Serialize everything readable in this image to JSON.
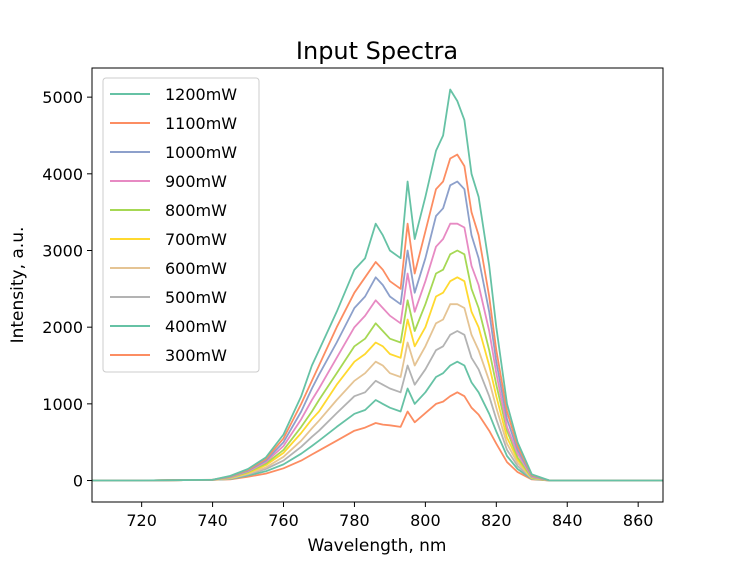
{
  "chart_data": {
    "type": "line",
    "title": "Input Spectra",
    "xlabel": "Wavelength, nm",
    "ylabel": "Intensity, a.u.",
    "xlim": [
      706,
      867
    ],
    "ylim": [
      -280,
      5380
    ],
    "xticks": [
      720,
      740,
      760,
      780,
      800,
      820,
      840,
      860
    ],
    "yticks": [
      0,
      1000,
      2000,
      3000,
      4000,
      5000
    ],
    "grid": false,
    "legend_position": "upper-left",
    "x": [
      706,
      720,
      740,
      745,
      750,
      755,
      760,
      765,
      768,
      770,
      775,
      780,
      783,
      786,
      788,
      790,
      793,
      795,
      797,
      800,
      803,
      805,
      807,
      809,
      811,
      813,
      815,
      818,
      820,
      823,
      826,
      830,
      835,
      840,
      850,
      867
    ],
    "series": [
      {
        "name": "1200mW",
        "color": "#66c2a5",
        "values": [
          0,
          0,
          10,
          60,
          150,
          300,
          600,
          1100,
          1500,
          1700,
          2200,
          2750,
          2900,
          3350,
          3200,
          3000,
          2900,
          3900,
          3150,
          3700,
          4300,
          4500,
          5100,
          4950,
          4700,
          4000,
          3700,
          2800,
          2000,
          1000,
          500,
          80,
          0,
          0,
          0,
          0
        ]
      },
      {
        "name": "1100mW",
        "color": "#fc8d62",
        "values": [
          0,
          0,
          10,
          55,
          140,
          280,
          550,
          1000,
          1300,
          1500,
          2000,
          2450,
          2650,
          2850,
          2750,
          2600,
          2500,
          3350,
          2700,
          3250,
          3800,
          3900,
          4200,
          4250,
          4100,
          3500,
          3200,
          2400,
          1700,
          900,
          450,
          70,
          0,
          0,
          0,
          0
        ]
      },
      {
        "name": "1000mW",
        "color": "#8da0cb",
        "values": [
          0,
          0,
          10,
          50,
          130,
          260,
          500,
          900,
          1200,
          1380,
          1800,
          2250,
          2400,
          2650,
          2550,
          2400,
          2300,
          3000,
          2450,
          2900,
          3450,
          3550,
          3850,
          3900,
          3800,
          3200,
          2900,
          2200,
          1550,
          800,
          400,
          60,
          0,
          0,
          0,
          0
        ]
      },
      {
        "name": "900mW",
        "color": "#e78ac3",
        "values": [
          0,
          0,
          10,
          45,
          120,
          240,
          450,
          800,
          1050,
          1200,
          1600,
          2000,
          2150,
          2350,
          2250,
          2150,
          2050,
          2700,
          2200,
          2600,
          3050,
          3150,
          3350,
          3350,
          3300,
          2800,
          2550,
          1950,
          1400,
          700,
          350,
          50,
          0,
          0,
          0,
          0
        ]
      },
      {
        "name": "800mW",
        "color": "#a6d854",
        "values": [
          0,
          0,
          10,
          40,
          110,
          220,
          400,
          700,
          900,
          1050,
          1400,
          1750,
          1850,
          2050,
          1950,
          1850,
          1800,
          2350,
          1950,
          2300,
          2700,
          2750,
          2950,
          3000,
          2950,
          2500,
          2250,
          1700,
          1250,
          650,
          300,
          40,
          0,
          0,
          0,
          0
        ]
      },
      {
        "name": "700mW",
        "color": "#ffd92f",
        "values": [
          0,
          0,
          10,
          35,
          100,
          200,
          360,
          620,
          800,
          900,
          1250,
          1550,
          1650,
          1800,
          1750,
          1650,
          1600,
          2100,
          1750,
          2000,
          2400,
          2450,
          2600,
          2650,
          2600,
          2200,
          2000,
          1500,
          1100,
          560,
          270,
          35,
          0,
          0,
          0,
          0
        ]
      },
      {
        "name": "600mW",
        "color": "#e5c494",
        "values": [
          0,
          0,
          10,
          30,
          90,
          170,
          310,
          520,
          680,
          780,
          1050,
          1300,
          1400,
          1550,
          1500,
          1400,
          1350,
          1800,
          1500,
          1750,
          2050,
          2100,
          2300,
          2300,
          2250,
          1900,
          1700,
          1300,
          950,
          480,
          230,
          30,
          0,
          0,
          0,
          0
        ]
      },
      {
        "name": "500mW",
        "color": "#b3b3b3",
        "values": [
          0,
          0,
          10,
          25,
          80,
          150,
          260,
          440,
          570,
          650,
          880,
          1100,
          1150,
          1300,
          1250,
          1200,
          1150,
          1500,
          1250,
          1450,
          1700,
          1750,
          1900,
          1950,
          1900,
          1600,
          1450,
          1100,
          800,
          400,
          190,
          25,
          0,
          0,
          0,
          0
        ]
      },
      {
        "name": "400mW",
        "color": "#66c2a5",
        "values": [
          0,
          0,
          10,
          20,
          65,
          120,
          210,
          350,
          450,
          520,
          700,
          870,
          920,
          1050,
          1000,
          950,
          900,
          1200,
          1000,
          1150,
          1350,
          1400,
          1500,
          1550,
          1500,
          1280,
          1150,
          870,
          640,
          320,
          150,
          20,
          0,
          0,
          0,
          0
        ]
      },
      {
        "name": "300mW",
        "color": "#fc8d62",
        "values": [
          0,
          0,
          10,
          15,
          50,
          90,
          160,
          260,
          340,
          390,
          520,
          650,
          690,
          750,
          730,
          720,
          700,
          900,
          760,
          880,
          1000,
          1030,
          1100,
          1150,
          1100,
          950,
          860,
          650,
          480,
          240,
          110,
          15,
          0,
          0,
          0,
          0
        ]
      }
    ]
  }
}
